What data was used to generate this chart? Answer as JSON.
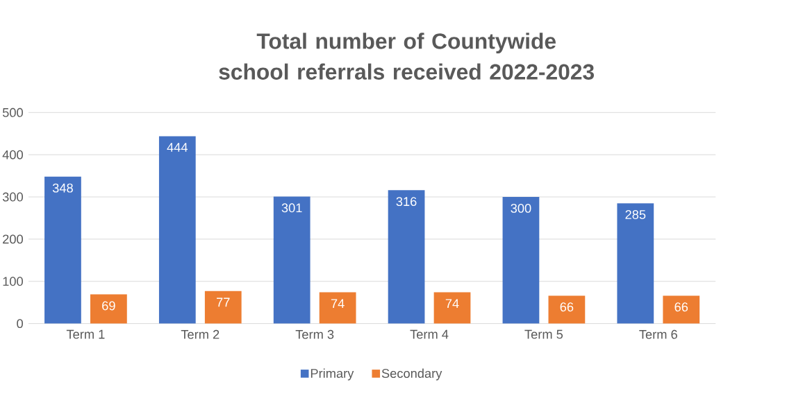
{
  "chart_data": {
    "type": "bar",
    "title": "Total number of Countywide school referrals received 2022-2023",
    "categories": [
      "Term 1",
      "Term 2",
      "Term 3",
      "Term 4",
      "Term 5",
      "Term 6"
    ],
    "series": [
      {
        "name": "Primary",
        "color": "#4472c4",
        "values": [
          348,
          444,
          301,
          316,
          300,
          285
        ]
      },
      {
        "name": "Secondary",
        "color": "#ed7d31",
        "values": [
          69,
          77,
          74,
          74,
          66,
          66
        ]
      }
    ],
    "ylim": [
      0,
      500
    ],
    "yticks": [
      0,
      100,
      200,
      300,
      400,
      500
    ],
    "grid": "y",
    "legend": "bottom",
    "data_labels": true
  }
}
